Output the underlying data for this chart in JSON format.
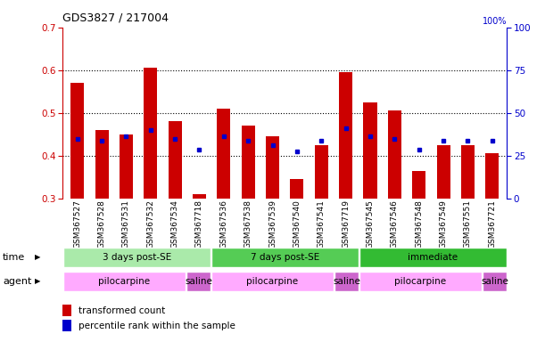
{
  "title": "GDS3827 / 217004",
  "samples": [
    "GSM367527",
    "GSM367528",
    "GSM367531",
    "GSM367532",
    "GSM367534",
    "GSM367718",
    "GSM367536",
    "GSM367538",
    "GSM367539",
    "GSM367540",
    "GSM367541",
    "GSM367719",
    "GSM367545",
    "GSM367546",
    "GSM367548",
    "GSM367549",
    "GSM367551",
    "GSM367721"
  ],
  "red_values": [
    0.57,
    0.46,
    0.45,
    0.605,
    0.48,
    0.31,
    0.51,
    0.47,
    0.445,
    0.345,
    0.425,
    0.595,
    0.525,
    0.505,
    0.365,
    0.425,
    0.425,
    0.405
  ],
  "blue_values": [
    0.44,
    0.435,
    0.445,
    0.46,
    0.44,
    0.415,
    0.445,
    0.435,
    0.425,
    0.41,
    0.435,
    0.465,
    0.445,
    0.44,
    0.415,
    0.435,
    0.435,
    0.435
  ],
  "ymin": 0.3,
  "ymax": 0.7,
  "yticks": [
    0.3,
    0.4,
    0.5,
    0.6,
    0.7
  ],
  "y2ticks": [
    0,
    25,
    50,
    75,
    100
  ],
  "time_groups": [
    {
      "label": "3 days post-SE",
      "start": 0,
      "end": 6,
      "color": "#aaeaaa"
    },
    {
      "label": "7 days post-SE",
      "start": 6,
      "end": 12,
      "color": "#55cc55"
    },
    {
      "label": "immediate",
      "start": 12,
      "end": 18,
      "color": "#33bb33"
    }
  ],
  "agent_groups": [
    {
      "label": "pilocarpine",
      "start": 0,
      "end": 5,
      "color": "#ffaaff"
    },
    {
      "label": "saline",
      "start": 5,
      "end": 6,
      "color": "#cc66cc"
    },
    {
      "label": "pilocarpine",
      "start": 6,
      "end": 11,
      "color": "#ffaaff"
    },
    {
      "label": "saline",
      "start": 11,
      "end": 12,
      "color": "#cc66cc"
    },
    {
      "label": "pilocarpine",
      "start": 12,
      "end": 17,
      "color": "#ffaaff"
    },
    {
      "label": "saline",
      "start": 17,
      "end": 18,
      "color": "#cc66cc"
    }
  ],
  "bar_color": "#cc0000",
  "dot_color": "#0000cc",
  "label_color_red": "#cc0000",
  "label_color_blue": "#0000cc",
  "legend_items": [
    {
      "color": "#cc0000",
      "label": "transformed count"
    },
    {
      "color": "#0000cc",
      "label": "percentile rank within the sample"
    }
  ]
}
